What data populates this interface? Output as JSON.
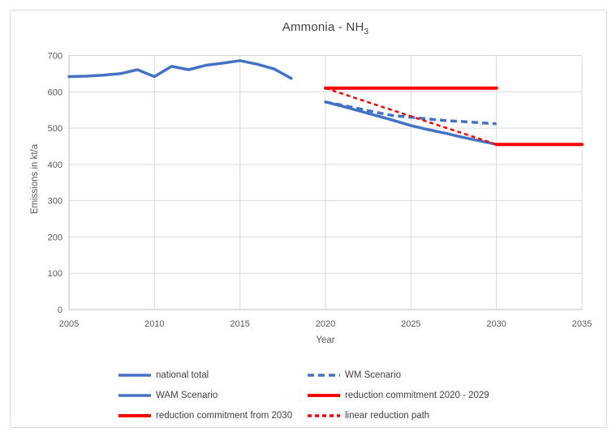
{
  "title": {
    "main": "Ammonia - NH",
    "subscript": "3"
  },
  "axes": {
    "x_label": "Year",
    "y_label": "Emissions in kt/a"
  },
  "colors": {
    "series_blue": "#4472C4",
    "series_red": "#FF0000",
    "grid": "#D9D9D9",
    "axis_line": "#BFBFBF",
    "tick_text": "#595959",
    "title_text": "#404040",
    "frame_border": "#D9D9D9"
  },
  "chart_data": {
    "type": "line",
    "title": "Ammonia - NH3",
    "xlabel": "Year",
    "ylabel": "Emissions in kt/a",
    "xlim": [
      2005,
      2035
    ],
    "ylim": [
      0,
      700
    ],
    "xticks": [
      2005,
      2010,
      2015,
      2020,
      2025,
      2030,
      2035
    ],
    "yticks": [
      0,
      100,
      200,
      300,
      400,
      500,
      600,
      700
    ],
    "grid": true,
    "legend_position": "bottom",
    "series": [
      {
        "name": "national total",
        "color": "#4472C4",
        "dash": "",
        "width": 3.5,
        "points": [
          [
            2005,
            642
          ],
          [
            2006,
            643
          ],
          [
            2007,
            646
          ],
          [
            2008,
            650
          ],
          [
            2009,
            661
          ],
          [
            2010,
            642
          ],
          [
            2011,
            670
          ],
          [
            2012,
            661
          ],
          [
            2013,
            673
          ],
          [
            2014,
            679
          ],
          [
            2015,
            686
          ],
          [
            2016,
            676
          ],
          [
            2017,
            663
          ],
          [
            2018,
            637
          ]
        ]
      },
      {
        "name": "WM Scenario",
        "color": "#4472C4",
        "dash": "8 5",
        "width": 3.5,
        "points": [
          [
            2020,
            572
          ],
          [
            2021,
            563
          ],
          [
            2022,
            553
          ],
          [
            2023,
            543
          ],
          [
            2024,
            534
          ],
          [
            2025,
            530
          ],
          [
            2026,
            525
          ],
          [
            2027,
            521
          ],
          [
            2028,
            518
          ],
          [
            2029,
            515
          ],
          [
            2030,
            512
          ]
        ]
      },
      {
        "name": "WAM Scenario",
        "color": "#4472C4",
        "dash": "",
        "width": 3.5,
        "points": [
          [
            2020,
            572
          ],
          [
            2021,
            560
          ],
          [
            2022,
            547
          ],
          [
            2023,
            534
          ],
          [
            2024,
            521
          ],
          [
            2025,
            507
          ],
          [
            2026,
            496
          ],
          [
            2027,
            486
          ],
          [
            2028,
            475
          ],
          [
            2029,
            465
          ],
          [
            2030,
            455
          ]
        ]
      },
      {
        "name": "reduction commitment 2020 - 2029",
        "color": "#FF0000",
        "dash": "",
        "width": 4,
        "points": [
          [
            2020,
            610
          ],
          [
            2030,
            610
          ]
        ]
      },
      {
        "name": "reduction commitment from 2030",
        "color": "#FF0000",
        "dash": "",
        "width": 4,
        "points": [
          [
            2030,
            455
          ],
          [
            2035,
            455
          ]
        ]
      },
      {
        "name": "linear reduction path",
        "color": "#FF0000",
        "dash": "5 4",
        "width": 2.5,
        "points": [
          [
            2020,
            610
          ],
          [
            2030,
            455
          ]
        ]
      }
    ]
  }
}
